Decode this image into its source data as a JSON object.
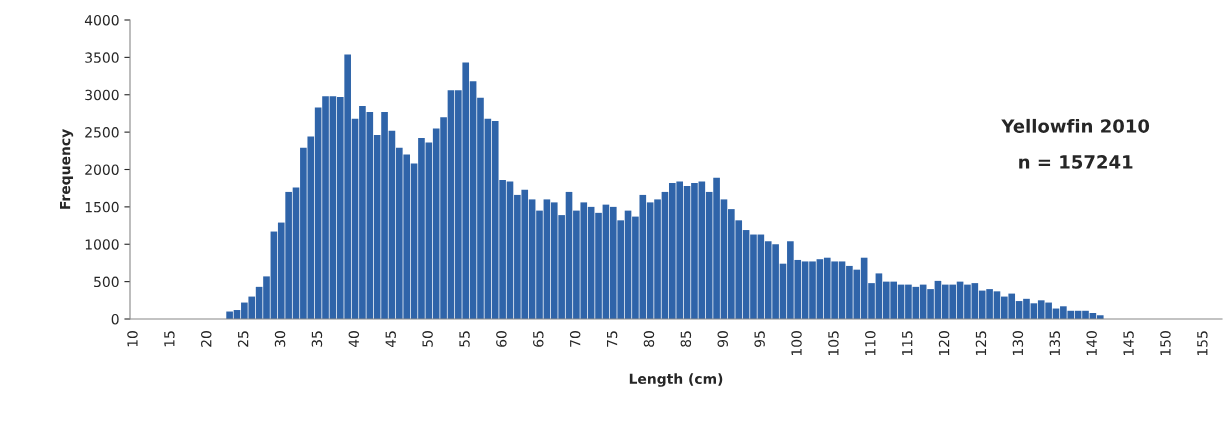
{
  "chart_data": {
    "type": "bar",
    "xlabel": "Length (cm)",
    "ylabel": "Frequency",
    "annotations": [
      "Yellowfin 2010",
      "n = 157241"
    ],
    "categories": [
      "10",
      null,
      null,
      null,
      null,
      "15",
      null,
      null,
      null,
      null,
      "20",
      null,
      null,
      null,
      null,
      "25",
      null,
      null,
      null,
      null,
      "30",
      null,
      null,
      null,
      null,
      "35",
      null,
      null,
      null,
      null,
      "40",
      null,
      null,
      null,
      null,
      "45",
      null,
      null,
      null,
      null,
      "50",
      null,
      null,
      null,
      null,
      "55",
      null,
      null,
      null,
      null,
      "60",
      null,
      null,
      null,
      null,
      "65",
      null,
      null,
      null,
      null,
      "70",
      null,
      null,
      null,
      null,
      "75",
      null,
      null,
      null,
      null,
      "80",
      null,
      null,
      null,
      null,
      "85",
      null,
      null,
      null,
      null,
      "90",
      null,
      null,
      null,
      null,
      "95",
      null,
      null,
      null,
      null,
      "100",
      null,
      null,
      null,
      null,
      "105",
      null,
      null,
      null,
      null,
      "110",
      null,
      null,
      null,
      null,
      "115",
      null,
      null,
      null,
      null,
      "120",
      null,
      null,
      null,
      null,
      "125",
      null,
      null,
      null,
      null,
      "130",
      null,
      null,
      null,
      null,
      "135",
      null,
      null,
      null,
      null,
      "140",
      null,
      null,
      null,
      null,
      "145",
      null,
      null,
      null,
      null,
      "150",
      null,
      null,
      null,
      null,
      "155",
      null,
      null
    ],
    "values": [
      0,
      0,
      0,
      0,
      0,
      0,
      0,
      0,
      0,
      0,
      0,
      0,
      0,
      100,
      120,
      220,
      300,
      430,
      570,
      1170,
      1290,
      1700,
      1760,
      2290,
      2440,
      2830,
      2980,
      2980,
      2970,
      3540,
      2680,
      2850,
      2770,
      2460,
      2770,
      2520,
      2290,
      2200,
      2080,
      2420,
      2360,
      2550,
      2700,
      3060,
      3060,
      3430,
      3180,
      2960,
      2680,
      2650,
      1860,
      1840,
      1660,
      1730,
      1600,
      1450,
      1600,
      1560,
      1390,
      1700,
      1450,
      1560,
      1500,
      1420,
      1530,
      1500,
      1320,
      1450,
      1370,
      1660,
      1560,
      1600,
      1700,
      1820,
      1840,
      1780,
      1820,
      1840,
      1700,
      1890,
      1600,
      1470,
      1320,
      1190,
      1130,
      1130,
      1040,
      1000,
      740,
      1040,
      790,
      770,
      770,
      800,
      820,
      770,
      770,
      710,
      660,
      820,
      480,
      610,
      500,
      500,
      460,
      460,
      430,
      460,
      400,
      510,
      460,
      460,
      500,
      460,
      480,
      380,
      400,
      370,
      300,
      340,
      240,
      270,
      210,
      250,
      220,
      140,
      170,
      110,
      110,
      110,
      80,
      50,
      0,
      0,
      0,
      0,
      0,
      0,
      0,
      0,
      0,
      0,
      0,
      0,
      0,
      0,
      0,
      0
    ],
    "color": "#2f64a9",
    "ylim": [
      0,
      4000
    ],
    "yticks": [
      0,
      500,
      1000,
      1500,
      2000,
      2500,
      3000,
      3500,
      4000
    ],
    "grid": false,
    "legend": false
  }
}
